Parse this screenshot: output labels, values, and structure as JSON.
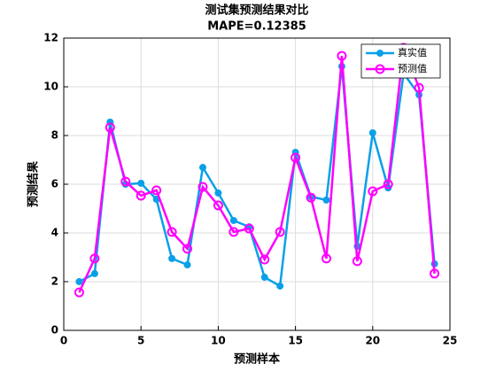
{
  "chart_data": {
    "type": "line",
    "title": "测试集预测结果对比",
    "subtitle": "MAPE=0.12385",
    "x_label": "预测样本",
    "y_label": "预测结果",
    "x": [
      1,
      2,
      3,
      4,
      5,
      6,
      7,
      8,
      9,
      10,
      11,
      12,
      13,
      14,
      15,
      16,
      17,
      18,
      19,
      20,
      21,
      22,
      23,
      24
    ],
    "series": [
      {
        "name": "真实值",
        "color": "#0aa0e8",
        "marker": "filled",
        "values": [
          2.0,
          2.33,
          8.55,
          6.0,
          6.04,
          5.38,
          2.95,
          2.69,
          6.69,
          5.64,
          4.51,
          4.25,
          2.18,
          1.82,
          7.31,
          5.49,
          5.35,
          10.84,
          3.45,
          8.11,
          5.85,
          10.55,
          9.67,
          2.73
        ]
      },
      {
        "name": "预测值",
        "color": "#ff00ff",
        "marker": "open",
        "values": [
          1.56,
          2.95,
          8.33,
          6.11,
          5.53,
          5.75,
          4.04,
          3.35,
          5.89,
          5.13,
          4.04,
          4.18,
          2.91,
          4.04,
          7.09,
          5.45,
          2.95,
          11.27,
          2.84,
          5.71,
          6.0,
          11.6,
          9.96,
          2.33
        ]
      }
    ],
    "xlim": [
      0,
      25
    ],
    "xticks": [
      0,
      5,
      10,
      15,
      20,
      25
    ],
    "ylim": [
      0,
      12
    ],
    "yticks": [
      0,
      2,
      4,
      6,
      8,
      10,
      12
    ],
    "grid": true,
    "legend": "northeast"
  }
}
